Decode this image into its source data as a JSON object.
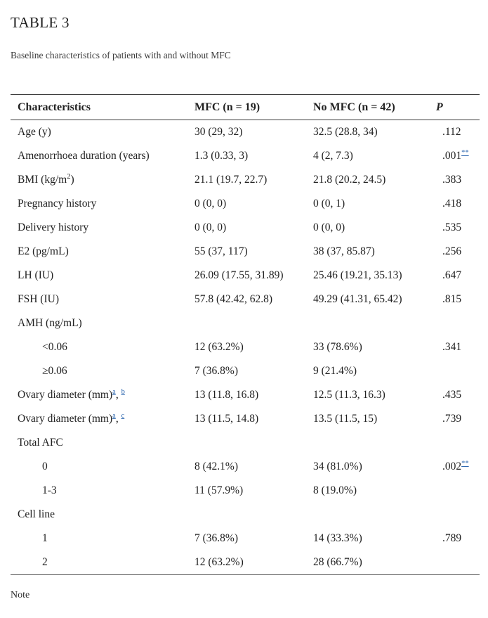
{
  "page": {
    "title": "TABLE 3",
    "caption": "Baseline characteristics of patients with and without MFC",
    "note_label": "Note"
  },
  "colors": {
    "text": "#212121",
    "caption_text": "#3c3c3c",
    "table_border": "#3a3a3a",
    "footnote_link": "#3069b0",
    "background": "#ffffff"
  },
  "table": {
    "columns": [
      "Characteristics",
      "MFC (n = 19)",
      "No MFC (n = 42)",
      "P"
    ],
    "rows": [
      {
        "indent": 0,
        "cells": [
          [
            {
              "t": "Age (y)"
            }
          ],
          [
            {
              "t": "30 (29, 32)"
            }
          ],
          [
            {
              "t": "32.5 (28.8, 34)"
            }
          ],
          [
            {
              "t": ".112"
            }
          ]
        ]
      },
      {
        "indent": 0,
        "cells": [
          [
            {
              "t": "Amenorrhoea duration (years)"
            }
          ],
          [
            {
              "t": "1.3 (0.33, 3)"
            }
          ],
          [
            {
              "t": "4 (2, 7.3)"
            }
          ],
          [
            {
              "t": ".001"
            },
            {
              "t": "**",
              "sup": true,
              "link": true
            }
          ]
        ]
      },
      {
        "indent": 0,
        "cells": [
          [
            {
              "t": "BMI (kg/m"
            },
            {
              "t": "2",
              "sup": true
            },
            {
              "t": ")"
            }
          ],
          [
            {
              "t": "21.1 (19.7, 22.7)"
            }
          ],
          [
            {
              "t": "21.8 (20.2, 24.5)"
            }
          ],
          [
            {
              "t": ".383"
            }
          ]
        ]
      },
      {
        "indent": 0,
        "cells": [
          [
            {
              "t": "Pregnancy history"
            }
          ],
          [
            {
              "t": "0 (0, 0)"
            }
          ],
          [
            {
              "t": "0 (0, 1)"
            }
          ],
          [
            {
              "t": ".418"
            }
          ]
        ]
      },
      {
        "indent": 0,
        "cells": [
          [
            {
              "t": "Delivery history"
            }
          ],
          [
            {
              "t": "0 (0, 0)"
            }
          ],
          [
            {
              "t": "0 (0, 0)"
            }
          ],
          [
            {
              "t": ".535"
            }
          ]
        ]
      },
      {
        "indent": 0,
        "cells": [
          [
            {
              "t": "E2 (pg/mL)"
            }
          ],
          [
            {
              "t": "55 (37, 117)"
            }
          ],
          [
            {
              "t": "38 (37, 85.87)"
            }
          ],
          [
            {
              "t": ".256"
            }
          ]
        ]
      },
      {
        "indent": 0,
        "cells": [
          [
            {
              "t": "LH (IU)"
            }
          ],
          [
            {
              "t": "26.09 (17.55, 31.89)"
            }
          ],
          [
            {
              "t": "25.46 (19.21, 35.13)"
            }
          ],
          [
            {
              "t": ".647"
            }
          ]
        ]
      },
      {
        "indent": 0,
        "cells": [
          [
            {
              "t": "FSH (IU)"
            }
          ],
          [
            {
              "t": "57.8 (42.42, 62.8)"
            }
          ],
          [
            {
              "t": "49.29 (41.31, 65.42)"
            }
          ],
          [
            {
              "t": ".815"
            }
          ]
        ]
      },
      {
        "indent": 0,
        "cells": [
          [
            {
              "t": "AMH (ng/mL)"
            }
          ],
          [],
          [],
          []
        ]
      },
      {
        "indent": 1,
        "cells": [
          [
            {
              "t": "<0.06"
            }
          ],
          [
            {
              "t": "12 (63.2%)"
            }
          ],
          [
            {
              "t": "33 (78.6%)"
            }
          ],
          [
            {
              "t": ".341"
            }
          ]
        ]
      },
      {
        "indent": 1,
        "cells": [
          [
            {
              "t": "≥0.06"
            }
          ],
          [
            {
              "t": "7 (36.8%)"
            }
          ],
          [
            {
              "t": "9 (21.4%)"
            }
          ],
          []
        ]
      },
      {
        "indent": 0,
        "cells": [
          [
            {
              "t": "Ovary diameter (mm)"
            },
            {
              "t": "a",
              "sup": true,
              "link": true
            },
            {
              "t": ", "
            },
            {
              "t": "b",
              "sup": true,
              "link": true
            }
          ],
          [
            {
              "t": "13 (11.8, 16.8)"
            }
          ],
          [
            {
              "t": "12.5 (11.3, 16.3)"
            }
          ],
          [
            {
              "t": ".435"
            }
          ]
        ]
      },
      {
        "indent": 0,
        "cells": [
          [
            {
              "t": "Ovary diameter (mm)"
            },
            {
              "t": "a",
              "sup": true,
              "link": true
            },
            {
              "t": ", "
            },
            {
              "t": "c",
              "sup": true,
              "link": true
            }
          ],
          [
            {
              "t": "13 (11.5, 14.8)"
            }
          ],
          [
            {
              "t": "13.5 (11.5, 15)"
            }
          ],
          [
            {
              "t": ".739"
            }
          ]
        ]
      },
      {
        "indent": 0,
        "cells": [
          [
            {
              "t": "Total AFC"
            }
          ],
          [],
          [],
          []
        ]
      },
      {
        "indent": 1,
        "cells": [
          [
            {
              "t": "0"
            }
          ],
          [
            {
              "t": "8 (42.1%)"
            }
          ],
          [
            {
              "t": "34 (81.0%)"
            }
          ],
          [
            {
              "t": ".002"
            },
            {
              "t": "**",
              "sup": true,
              "link": true
            }
          ]
        ]
      },
      {
        "indent": 1,
        "cells": [
          [
            {
              "t": "1-3"
            }
          ],
          [
            {
              "t": "11 (57.9%)"
            }
          ],
          [
            {
              "t": "8 (19.0%)"
            }
          ],
          []
        ]
      },
      {
        "indent": 0,
        "cells": [
          [
            {
              "t": "Cell line"
            }
          ],
          [],
          [],
          []
        ]
      },
      {
        "indent": 1,
        "cells": [
          [
            {
              "t": "1"
            }
          ],
          [
            {
              "t": "7 (36.8%)"
            }
          ],
          [
            {
              "t": "14 (33.3%)"
            }
          ],
          [
            {
              "t": ".789"
            }
          ]
        ]
      },
      {
        "indent": 1,
        "cells": [
          [
            {
              "t": "2"
            }
          ],
          [
            {
              "t": "12 (63.2%)"
            }
          ],
          [
            {
              "t": "28 (66.7%)"
            }
          ],
          []
        ]
      }
    ]
  }
}
